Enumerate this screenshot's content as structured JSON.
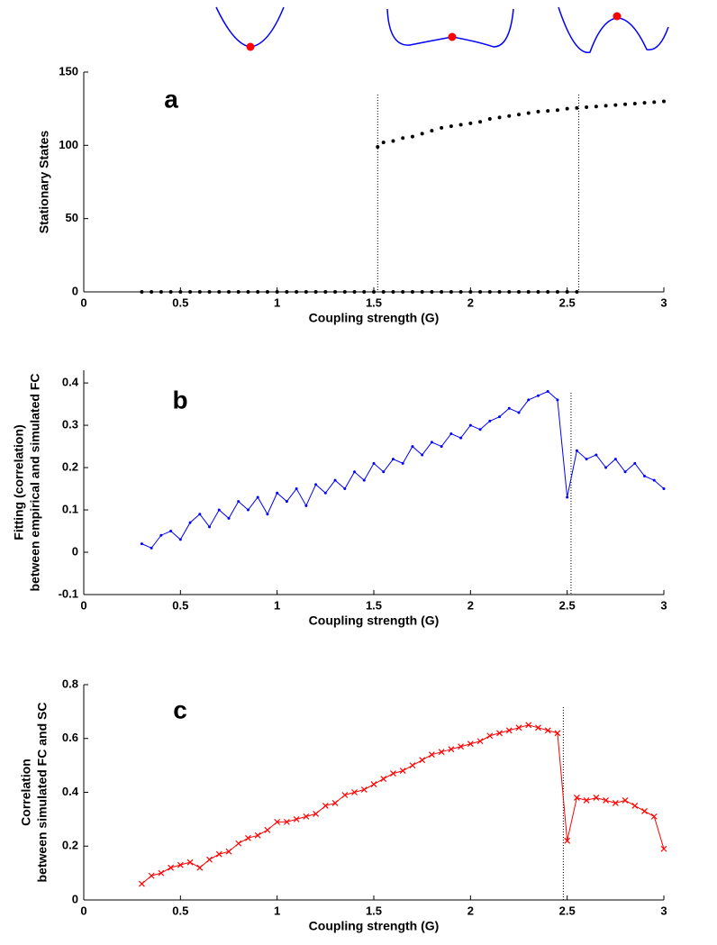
{
  "chart_data": [
    {
      "type": "scatter",
      "panel_label": "a",
      "xlabel": "Coupling strength (G)",
      "ylabel": [
        "Stationary States"
      ],
      "xlim": [
        0,
        3
      ],
      "xticks": [
        0,
        0.5,
        1,
        1.5,
        2,
        2.5,
        3
      ],
      "ylim": [
        0,
        150
      ],
      "yticks": [
        0,
        50,
        100,
        150
      ],
      "vlines": [
        1.52,
        2.56
      ],
      "vline_color": "#000000",
      "series": [
        {
          "color": "#000000",
          "marker": "dot",
          "x": [
            0.3,
            0.35,
            0.4,
            0.45,
            0.5,
            0.55,
            0.6,
            0.65,
            0.7,
            0.75,
            0.8,
            0.85,
            0.9,
            0.95,
            1.0,
            1.05,
            1.1,
            1.15,
            1.2,
            1.25,
            1.3,
            1.35,
            1.4,
            1.45,
            1.5,
            1.55,
            1.6,
            1.65,
            1.7,
            1.75,
            1.8,
            1.85,
            1.9,
            1.95,
            2.0,
            2.05,
            2.1,
            2.15,
            2.2,
            2.25,
            2.3,
            2.35,
            2.4,
            2.45,
            2.5,
            2.55
          ],
          "values": [
            0,
            0,
            0,
            0,
            0,
            0,
            0,
            0,
            0,
            0,
            0,
            0,
            0,
            0,
            0,
            0,
            0,
            0,
            0,
            0,
            0,
            0,
            0,
            0,
            0,
            0,
            0,
            0,
            0,
            0,
            0,
            0,
            0,
            0,
            0,
            0,
            0,
            0,
            0,
            0,
            0,
            0,
            0,
            0,
            0,
            0
          ]
        },
        {
          "color": "#000000",
          "marker": "dot",
          "x": [
            1.52,
            1.55,
            1.6,
            1.65,
            1.7,
            1.75,
            1.8,
            1.85,
            1.9,
            1.95,
            2.0,
            2.05,
            2.1,
            2.15,
            2.2,
            2.25,
            2.3,
            2.35,
            2.4,
            2.45,
            2.5,
            2.55,
            2.6,
            2.65,
            2.7,
            2.75,
            2.8,
            2.85,
            2.9,
            2.95,
            3.0
          ],
          "values": [
            99,
            102,
            103,
            105,
            106,
            108,
            110,
            112,
            113,
            114,
            115,
            116,
            118,
            119,
            120,
            121,
            122,
            123,
            123.5,
            124,
            125,
            125.5,
            126,
            126.5,
            127,
            127.5,
            128,
            128.5,
            129,
            129.5,
            130
          ]
        }
      ]
    },
    {
      "type": "line",
      "panel_label": "b",
      "xlabel": "Coupling strength (G)",
      "ylabel": [
        "Fitting (correlation)",
        "between empirical and simulated FC"
      ],
      "xlim": [
        0,
        3
      ],
      "xticks": [
        0,
        0.5,
        1,
        1.5,
        2,
        2.5,
        3
      ],
      "ylim": [
        -0.1,
        0.43
      ],
      "yticks": [
        -0.1,
        0,
        0.1,
        0.2,
        0.3,
        0.4
      ],
      "vlines": [
        2.52
      ],
      "vline_color": "#000000",
      "x": [
        0.3,
        0.35,
        0.4,
        0.45,
        0.5,
        0.55,
        0.6,
        0.65,
        0.7,
        0.75,
        0.8,
        0.85,
        0.9,
        0.95,
        1.0,
        1.05,
        1.1,
        1.15,
        1.2,
        1.25,
        1.3,
        1.35,
        1.4,
        1.45,
        1.5,
        1.55,
        1.6,
        1.65,
        1.7,
        1.75,
        1.8,
        1.85,
        1.9,
        1.95,
        2.0,
        2.05,
        2.1,
        2.15,
        2.2,
        2.25,
        2.3,
        2.35,
        2.4,
        2.45,
        2.5,
        2.55,
        2.6,
        2.65,
        2.7,
        2.75,
        2.8,
        2.85,
        2.9,
        2.95,
        3.0
      ],
      "series": [
        {
          "color": "#0000ff",
          "marker": "dot",
          "values": [
            0.02,
            0.01,
            0.04,
            0.05,
            0.03,
            0.07,
            0.09,
            0.06,
            0.1,
            0.08,
            0.12,
            0.1,
            0.13,
            0.09,
            0.14,
            0.12,
            0.15,
            0.11,
            0.16,
            0.14,
            0.17,
            0.15,
            0.19,
            0.17,
            0.21,
            0.19,
            0.22,
            0.21,
            0.25,
            0.23,
            0.26,
            0.25,
            0.28,
            0.27,
            0.3,
            0.29,
            0.31,
            0.32,
            0.34,
            0.33,
            0.36,
            0.37,
            0.38,
            0.36,
            0.13,
            0.24,
            0.22,
            0.23,
            0.2,
            0.22,
            0.19,
            0.21,
            0.18,
            0.17,
            0.15
          ]
        }
      ]
    },
    {
      "type": "line",
      "panel_label": "c",
      "xlabel": "Coupling strength (G)",
      "ylabel": [
        "Correlation",
        "between simulated FC and SC"
      ],
      "xlim": [
        0,
        3
      ],
      "xticks": [
        0,
        0.5,
        1,
        1.5,
        2,
        2.5,
        3
      ],
      "ylim": [
        0,
        0.8
      ],
      "yticks": [
        0,
        0.2,
        0.4,
        0.6,
        0.8
      ],
      "vlines": [
        2.48
      ],
      "vline_color": "#000000",
      "x": [
        0.3,
        0.35,
        0.4,
        0.45,
        0.5,
        0.55,
        0.6,
        0.65,
        0.7,
        0.75,
        0.8,
        0.85,
        0.9,
        0.95,
        1.0,
        1.05,
        1.1,
        1.15,
        1.2,
        1.25,
        1.3,
        1.35,
        1.4,
        1.45,
        1.5,
        1.55,
        1.6,
        1.65,
        1.7,
        1.75,
        1.8,
        1.85,
        1.9,
        1.95,
        2.0,
        2.05,
        2.1,
        2.15,
        2.2,
        2.25,
        2.3,
        2.35,
        2.4,
        2.45,
        2.5,
        2.55,
        2.6,
        2.65,
        2.7,
        2.75,
        2.8,
        2.85,
        2.9,
        2.95,
        3.0
      ],
      "series": [
        {
          "color": "#ff0000",
          "marker": "x",
          "values": [
            0.06,
            0.09,
            0.1,
            0.12,
            0.13,
            0.14,
            0.12,
            0.15,
            0.17,
            0.18,
            0.21,
            0.23,
            0.24,
            0.26,
            0.29,
            0.29,
            0.3,
            0.31,
            0.32,
            0.35,
            0.36,
            0.39,
            0.4,
            0.41,
            0.43,
            0.45,
            0.47,
            0.48,
            0.5,
            0.52,
            0.54,
            0.55,
            0.56,
            0.57,
            0.58,
            0.59,
            0.61,
            0.62,
            0.63,
            0.64,
            0.65,
            0.64,
            0.63,
            0.62,
            0.22,
            0.38,
            0.37,
            0.38,
            0.37,
            0.36,
            0.37,
            0.35,
            0.33,
            0.31,
            0.19
          ]
        }
      ]
    }
  ]
}
